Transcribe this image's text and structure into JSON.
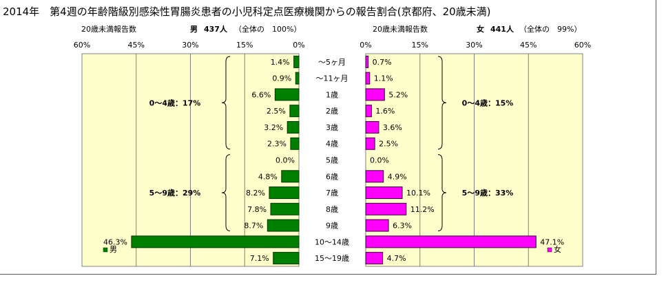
{
  "title": "2014年　第4週の年齢階級別感染性胃腸炎患者の小児科定点医療機関からの報告割合(京都府、20歳未満)",
  "chart_data": {
    "type": "bar",
    "categories": [
      "～5ヶ月",
      "～11ヶ月",
      "1歳",
      "2歳",
      "3歳",
      "4歳",
      "5歳",
      "6歳",
      "7歳",
      "8歳",
      "9歳",
      "10～14歳",
      "15～19歳"
    ],
    "xlim": [
      0,
      60
    ],
    "tick_values": [
      60,
      45,
      30,
      15,
      0
    ],
    "tick_labels": [
      "60%",
      "45%",
      "30%",
      "15%",
      "0%"
    ],
    "tick_values_female": [
      0,
      15,
      30,
      45,
      60
    ],
    "tick_labels_female": [
      "0%",
      "15%",
      "30%",
      "45%",
      "60%"
    ],
    "series": [
      {
        "name": "男",
        "header": {
          "count_label": "20歳未満報告数",
          "sex": "男",
          "count": "437人",
          "share": "（全体の　100%）"
        },
        "values": [
          1.4,
          0.9,
          6.6,
          2.5,
          3.2,
          2.3,
          0.0,
          4.8,
          8.2,
          7.8,
          8.7,
          46.3,
          7.1
        ],
        "labels": [
          "1.4%",
          "0.9%",
          "6.6%",
          "2.5%",
          "3.2%",
          "2.3%",
          "0.0%",
          "4.8%",
          "8.2%",
          "7.8%",
          "8.7%",
          "46.3%",
          "7.1%"
        ],
        "groups": [
          {
            "label": "0～4歳：17%",
            "from": 0,
            "to": 5
          },
          {
            "label": "5～9歳：29%",
            "from": 6,
            "to": 10
          }
        ],
        "legend": "男",
        "color": "#008000",
        "edge": "#003300"
      },
      {
        "name": "女",
        "header": {
          "count_label": "20歳未満報告数",
          "sex": "女",
          "count": "441人",
          "share": "（全体の　99%）"
        },
        "values": [
          0.7,
          1.1,
          5.2,
          1.6,
          3.6,
          2.5,
          0.0,
          4.9,
          10.1,
          11.2,
          6.3,
          47.1,
          4.7
        ],
        "labels": [
          "0.7%",
          "1.1%",
          "5.2%",
          "1.6%",
          "3.6%",
          "2.5%",
          "0.0%",
          "4.9%",
          "10.1%",
          "11.2%",
          "6.3%",
          "47.1%",
          "4.7%"
        ],
        "groups": [
          {
            "label": "0～4歳：15%",
            "from": 0,
            "to": 5
          },
          {
            "label": "5～9歳：33%",
            "from": 6,
            "to": 10
          }
        ],
        "legend": "女",
        "color": "#ff00ff",
        "edge": "#330033"
      }
    ],
    "plot_background": "#ffffcc",
    "grid": true,
    "legend_position": "bottom-right of each panel"
  }
}
